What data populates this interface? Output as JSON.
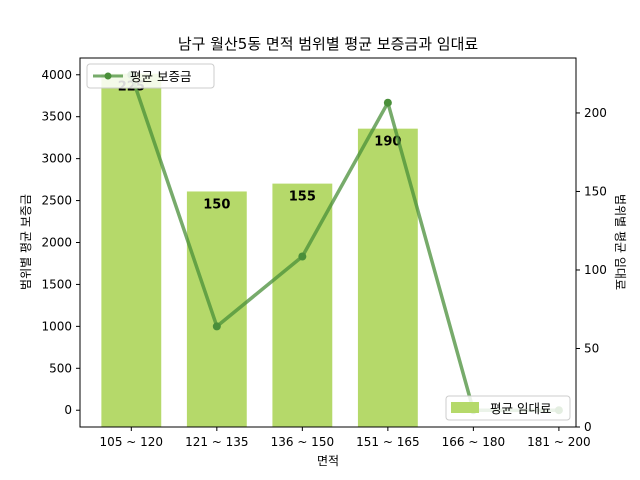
{
  "chart_data": {
    "type": "bar",
    "title": "남구 월산5동 면적 범위별 평균 보증금과 임대료",
    "xlabel": "면적",
    "ylabel_left": "범위별 평균 보증금",
    "ylabel_right": "범위별 평균 임대료",
    "categories": [
      "105 ~ 120",
      "121 ~ 135",
      "136 ~ 150",
      "151 ~ 165",
      "166 ~ 180",
      "181 ~ 200"
    ],
    "ylim_left": [
      -200,
      4200
    ],
    "ylim_right": [
      0,
      235
    ],
    "yticks_left": [
      0,
      500,
      1000,
      1500,
      2000,
      2500,
      3000,
      3500,
      4000
    ],
    "yticks_right": [
      0,
      50,
      100,
      150,
      200
    ],
    "series": [
      {
        "name": "평균 임대료",
        "kind": "bar",
        "axis": "right",
        "values": [
          225,
          150,
          155,
          190,
          0,
          0
        ],
        "data_labels": [
          "225",
          "150",
          "155",
          "190",
          "",
          ""
        ],
        "color": "#b5d96a"
      },
      {
        "name": "평균 보증금",
        "kind": "line",
        "axis": "left",
        "values": [
          4000,
          1000,
          1833,
          3667,
          0,
          0
        ],
        "color": "#4a8f3a"
      }
    ],
    "legend": {
      "line_position": "top-left",
      "bar_position": "bottom-right"
    },
    "grid": false
  }
}
